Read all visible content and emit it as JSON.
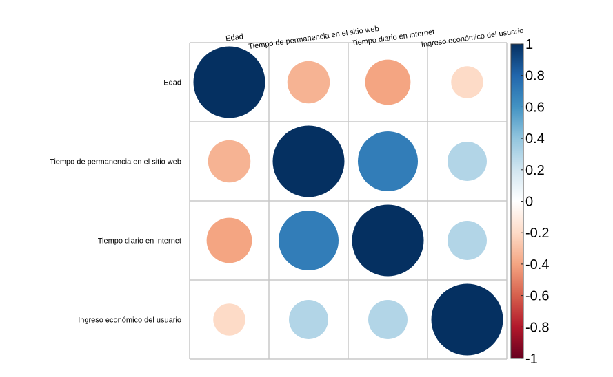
{
  "chart_data": {
    "type": "heatmap",
    "style": "correlation-circles",
    "variables": [
      "Edad",
      "Tiempo de permanencia en el sitio web",
      "Tiempo diario en internet",
      "Ingreso económico del usuario"
    ],
    "matrix": [
      [
        1.0,
        -0.35,
        -0.4,
        -0.2
      ],
      [
        -0.35,
        1.0,
        0.7,
        0.3
      ],
      [
        -0.4,
        0.7,
        1.0,
        0.3
      ],
      [
        -0.2,
        0.3,
        0.3,
        1.0
      ]
    ],
    "colorbar": {
      "ticks": [
        "1",
        "0.8",
        "0.6",
        "0.4",
        "0.2",
        "0",
        "-0.2",
        "-0.4",
        "-0.6",
        "-0.8",
        "-1"
      ],
      "range": [
        -1,
        1
      ],
      "colors": [
        "#67001F",
        "#B2182B",
        "#D6604D",
        "#F4A582",
        "#FDDBC7",
        "#FFFFFF",
        "#D1E5F0",
        "#92C5DE",
        "#4393C3",
        "#2166AC",
        "#053061"
      ]
    },
    "grid": true
  }
}
